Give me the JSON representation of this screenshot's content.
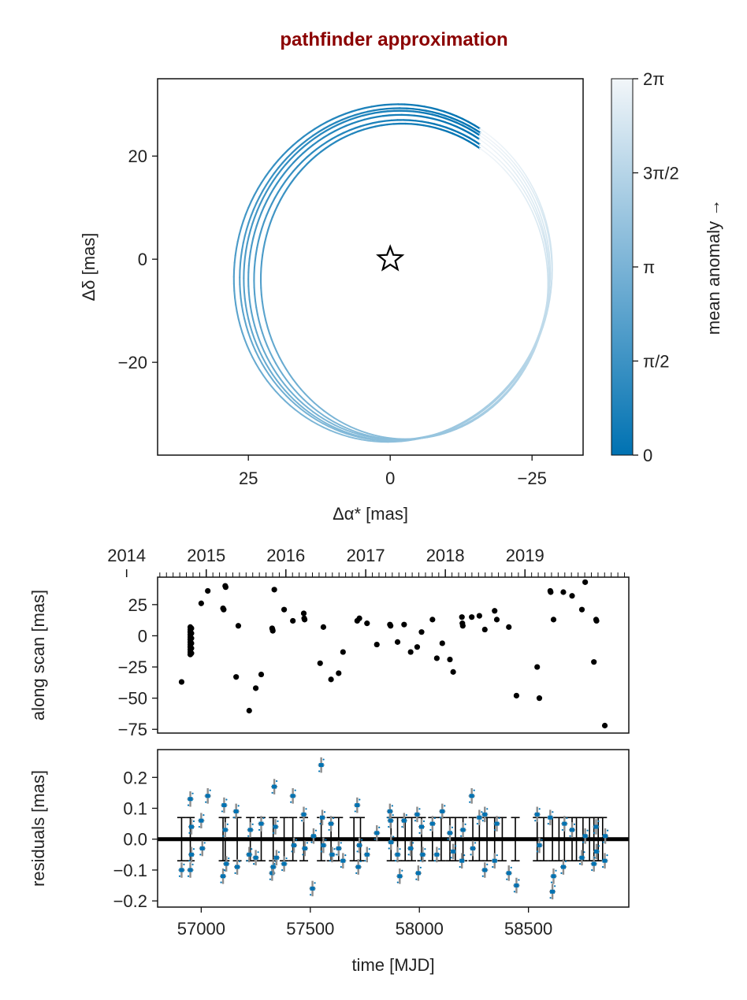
{
  "title": "pathfinder approximation",
  "colors": {
    "title": "#8b0000",
    "orbit_dark": "#0072b2",
    "orbit_light": "#f2f6f9",
    "points": "#000000",
    "residual_model": "#0072b2",
    "residual_spread": "#8c8c8c",
    "error_bars": "#000000"
  },
  "chart_data": [
    {
      "type": "orbit",
      "name": "sky_projection",
      "xlabel": "Δα* [mas]",
      "ylabel": "Δδ [mas]",
      "xlim": [
        41,
        -34
      ],
      "ylim": [
        -38,
        35
      ],
      "x_reversed": true,
      "xticks": [
        {
          "value": 25,
          "label": "25"
        },
        {
          "value": 0,
          "label": "0"
        },
        {
          "value": -25,
          "label": "−25"
        }
      ],
      "yticks": [
        {
          "value": 20,
          "label": "20"
        },
        {
          "value": 0,
          "label": "0"
        },
        {
          "value": -20,
          "label": "−20"
        }
      ],
      "star_marker": {
        "x": 0,
        "y": 0,
        "symbol": "star"
      },
      "orbits": [
        {
          "cx": -1.5,
          "cy": -3.5,
          "a": 26.5,
          "b": 31.5,
          "rot": 2.0,
          "start_deg": 120
        },
        {
          "cx": -1.0,
          "cy": -3.0,
          "a": 27.5,
          "b": 32.3,
          "rot": 4.0,
          "start_deg": 118
        },
        {
          "cx": -2.0,
          "cy": -4.0,
          "a": 26.0,
          "b": 31.0,
          "rot": 0.0,
          "start_deg": 122
        },
        {
          "cx": -0.5,
          "cy": -2.7,
          "a": 28.0,
          "b": 32.8,
          "rot": 6.0,
          "start_deg": 116
        },
        {
          "cx": -2.5,
          "cy": -4.3,
          "a": 25.3,
          "b": 30.6,
          "rot": -2.0,
          "start_deg": 124
        },
        {
          "cx": -1.2,
          "cy": -3.2,
          "a": 27.0,
          "b": 32.0,
          "rot": 3.0,
          "start_deg": 119
        }
      ],
      "colorbar": {
        "label": "mean anomaly →",
        "range": [
          0,
          6.2832
        ],
        "ticks": [
          {
            "value": 0,
            "label": "0"
          },
          {
            "value": 1.5708,
            "label": "π/2"
          },
          {
            "value": 3.1416,
            "label": "π"
          },
          {
            "value": 4.7124,
            "label": "3π/2"
          },
          {
            "value": 6.2832,
            "label": "2π"
          }
        ]
      }
    },
    {
      "type": "scatter",
      "name": "along_scan",
      "xlabel": "",
      "ylabel": "along scan [mas]",
      "xlim": [
        56800,
        58960
      ],
      "ylim": [
        -78,
        47
      ],
      "yticks": [
        {
          "value": 25,
          "label": "25"
        },
        {
          "value": 0,
          "label": "0"
        },
        {
          "value": -25,
          "label": "−25"
        },
        {
          "value": -50,
          "label": "−50"
        },
        {
          "value": -75,
          "label": "−75"
        }
      ],
      "top_axis": {
        "year_ticks": [
          {
            "value": 56658,
            "label": "2014"
          },
          {
            "value": 57023,
            "label": "2015"
          },
          {
            "value": 57388,
            "label": "2016"
          },
          {
            "value": 57754,
            "label": "2017"
          },
          {
            "value": 58119,
            "label": "2018"
          },
          {
            "value": 58484,
            "label": "2019"
          }
        ]
      },
      "points": [
        [
          56910,
          -37
        ],
        [
          56950,
          -15
        ],
        [
          56950,
          -13
        ],
        [
          56950,
          -11
        ],
        [
          56950,
          -9
        ],
        [
          56950,
          -7
        ],
        [
          56950,
          -5
        ],
        [
          56950,
          -3
        ],
        [
          56950,
          -1
        ],
        [
          56950,
          1
        ],
        [
          56950,
          3
        ],
        [
          56950,
          5
        ],
        [
          56950,
          7
        ],
        [
          56955,
          -14
        ],
        [
          56955,
          -10
        ],
        [
          56955,
          -6
        ],
        [
          56955,
          -2
        ],
        [
          56955,
          2
        ],
        [
          56955,
          6
        ],
        [
          57000,
          26
        ],
        [
          57030,
          36
        ],
        [
          57100,
          22
        ],
        [
          57103,
          21
        ],
        [
          57110,
          40
        ],
        [
          57112,
          39
        ],
        [
          57160,
          -33
        ],
        [
          57170,
          8
        ],
        [
          57220,
          -60
        ],
        [
          57250,
          -42
        ],
        [
          57275,
          -31
        ],
        [
          57325,
          6
        ],
        [
          57327,
          5
        ],
        [
          57328,
          4
        ],
        [
          57335,
          37
        ],
        [
          57380,
          21
        ],
        [
          57420,
          12
        ],
        [
          57470,
          18
        ],
        [
          57472,
          14
        ],
        [
          57474,
          13
        ],
        [
          57545,
          -22
        ],
        [
          57560,
          7
        ],
        [
          57595,
          -35
        ],
        [
          57630,
          -30
        ],
        [
          57650,
          -13
        ],
        [
          57715,
          12
        ],
        [
          57725,
          14
        ],
        [
          57760,
          10
        ],
        [
          57805,
          -7
        ],
        [
          57865,
          9
        ],
        [
          57868,
          8
        ],
        [
          57900,
          -5
        ],
        [
          57930,
          9
        ],
        [
          57960,
          -13
        ],
        [
          57990,
          -9
        ],
        [
          58010,
          3
        ],
        [
          58060,
          13
        ],
        [
          58080,
          -18
        ],
        [
          58105,
          -6
        ],
        [
          58140,
          -19
        ],
        [
          58155,
          -29
        ],
        [
          58195,
          15
        ],
        [
          58197,
          10
        ],
        [
          58199,
          8
        ],
        [
          58240,
          15
        ],
        [
          58275,
          16
        ],
        [
          58300,
          5
        ],
        [
          58345,
          20
        ],
        [
          58355,
          13
        ],
        [
          58410,
          7
        ],
        [
          58445,
          -48
        ],
        [
          58540,
          -25
        ],
        [
          58550,
          -50
        ],
        [
          58600,
          36
        ],
        [
          58602,
          35
        ],
        [
          58615,
          13
        ],
        [
          58660,
          35
        ],
        [
          58700,
          32
        ],
        [
          58745,
          21
        ],
        [
          58760,
          43
        ],
        [
          58800,
          -21
        ],
        [
          58810,
          13
        ],
        [
          58812,
          12
        ],
        [
          58850,
          -72
        ]
      ]
    },
    {
      "type": "errorbar",
      "name": "residuals",
      "xlabel": "time [MJD]",
      "ylabel": "residuals [mas]",
      "xlim": [
        56800,
        58960
      ],
      "ylim": [
        -0.22,
        0.29
      ],
      "xticks": [
        {
          "value": 57000,
          "label": "57000"
        },
        {
          "value": 57500,
          "label": "57500"
        },
        {
          "value": 58000,
          "label": "58000"
        },
        {
          "value": 58500,
          "label": "58500"
        }
      ],
      "yticks": [
        {
          "value": 0.2,
          "label": "0.2"
        },
        {
          "value": 0.1,
          "label": "0.1"
        },
        {
          "value": 0.0,
          "label": "0.0"
        },
        {
          "value": -0.1,
          "label": "−0.1"
        },
        {
          "value": -0.2,
          "label": "−0.2"
        }
      ],
      "error_bar_halfwidth": 0.07,
      "error_bar_epochs": [
        56910,
        56950,
        57100,
        57110,
        57165,
        57225,
        57275,
        57330,
        57380,
        57420,
        57470,
        57550,
        57595,
        57630,
        57700,
        57730,
        57870,
        57900,
        57935,
        57965,
        58010,
        58060,
        58100,
        58140,
        58165,
        58200,
        58245,
        58275,
        58310,
        58345,
        58380,
        58440,
        58540,
        58570,
        58610,
        58640,
        58665,
        58700,
        58720,
        58750,
        58780,
        58800,
        58820,
        58840
      ],
      "residual_points": [
        [
          56910,
          -0.1
        ],
        [
          56950,
          0.13
        ],
        [
          56950,
          -0.1
        ],
        [
          56955,
          0.04
        ],
        [
          56955,
          -0.05
        ],
        [
          57000,
          0.06
        ],
        [
          57005,
          -0.03
        ],
        [
          57030,
          0.14
        ],
        [
          57100,
          -0.12
        ],
        [
          57105,
          0.11
        ],
        [
          57110,
          0.03
        ],
        [
          57115,
          -0.08
        ],
        [
          57160,
          0.09
        ],
        [
          57165,
          -0.09
        ],
        [
          57220,
          -0.05
        ],
        [
          57225,
          0.03
        ],
        [
          57250,
          -0.06
        ],
        [
          57275,
          0.05
        ],
        [
          57325,
          -0.11
        ],
        [
          57330,
          -0.09
        ],
        [
          57335,
          0.17
        ],
        [
          57340,
          0.04
        ],
        [
          57345,
          -0.06
        ],
        [
          57380,
          -0.08
        ],
        [
          57420,
          0.14
        ],
        [
          57425,
          -0.02
        ],
        [
          57470,
          0.08
        ],
        [
          57475,
          -0.03
        ],
        [
          57510,
          -0.16
        ],
        [
          57515,
          0.01
        ],
        [
          57550,
          0.24
        ],
        [
          57555,
          0.07
        ],
        [
          57560,
          -0.02
        ],
        [
          57595,
          0.05
        ],
        [
          57600,
          -0.05
        ],
        [
          57630,
          -0.03
        ],
        [
          57650,
          -0.07
        ],
        [
          57715,
          0.11
        ],
        [
          57720,
          -0.09
        ],
        [
          57725,
          -0.02
        ],
        [
          57760,
          -0.05
        ],
        [
          57805,
          0.02
        ],
        [
          57865,
          0.09
        ],
        [
          57868,
          0.06
        ],
        [
          57870,
          -0.01
        ],
        [
          57900,
          -0.05
        ],
        [
          57910,
          -0.12
        ],
        [
          57930,
          0.06
        ],
        [
          57960,
          -0.03
        ],
        [
          57990,
          0.08
        ],
        [
          57995,
          -0.11
        ],
        [
          58010,
          0.04
        ],
        [
          58015,
          -0.05
        ],
        [
          58060,
          0.05
        ],
        [
          58080,
          -0.05
        ],
        [
          58105,
          0.09
        ],
        [
          58140,
          0.02
        ],
        [
          58155,
          -0.04
        ],
        [
          58195,
          -0.07
        ],
        [
          58200,
          0.03
        ],
        [
          58240,
          0.14
        ],
        [
          58245,
          -0.03
        ],
        [
          58275,
          0.07
        ],
        [
          58300,
          0.08
        ],
        [
          58300,
          -0.1
        ],
        [
          58345,
          -0.07
        ],
        [
          58355,
          0.05
        ],
        [
          58410,
          -0.11
        ],
        [
          58445,
          -0.15
        ],
        [
          58540,
          0.08
        ],
        [
          58550,
          -0.02
        ],
        [
          58600,
          0.07
        ],
        [
          58610,
          -0.17
        ],
        [
          58615,
          -0.12
        ],
        [
          58660,
          -0.09
        ],
        [
          58665,
          0.05
        ],
        [
          58700,
          0.03
        ],
        [
          58745,
          -0.06
        ],
        [
          58760,
          0.01
        ],
        [
          58800,
          -0.08
        ],
        [
          58810,
          0.04
        ],
        [
          58812,
          -0.04
        ],
        [
          58850,
          -0.07
        ],
        [
          58852,
          0.01
        ]
      ]
    }
  ]
}
